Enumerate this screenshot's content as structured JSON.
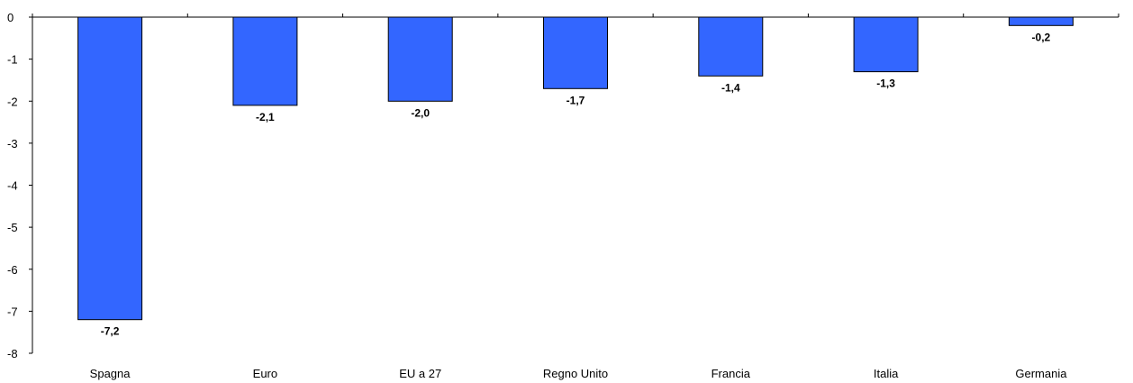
{
  "chart_data": {
    "type": "bar",
    "title": "",
    "xlabel": "",
    "ylabel": "",
    "categories": [
      "Spagna",
      "Euro",
      "EU a 27",
      "Regno Unito",
      "Francia",
      "Italia",
      "Germania"
    ],
    "values": [
      -7.2,
      -2.1,
      -2.0,
      -1.7,
      -1.4,
      -1.3,
      -0.2
    ],
    "data_labels": [
      "-7,2",
      "-2,1",
      "-2,0",
      "-1,7",
      "-1,4",
      "-1,3",
      "-0,2"
    ],
    "ylim": [
      -8,
      0
    ],
    "yticks": [
      0,
      -1,
      -2,
      -3,
      -4,
      -5,
      -6,
      -7,
      -8
    ],
    "ytick_labels": [
      "0",
      "-1",
      "-2",
      "-3",
      "-4",
      "-5",
      "-6",
      "-7",
      "-8"
    ],
    "grid": false,
    "legend": "none",
    "bar_color": "#3366ff",
    "bar_edge_color": "#000000"
  }
}
